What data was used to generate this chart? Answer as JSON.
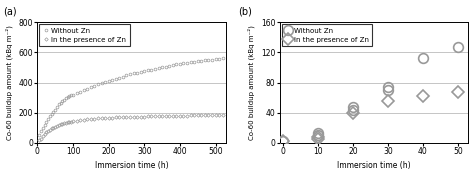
{
  "panel_a": {
    "title": "(a)",
    "xlabel": "Immersion time (h)",
    "ylabel": "Co-60 buildup amount (kBq m⁻²)",
    "xlim": [
      0,
      530
    ],
    "ylim": [
      0,
      800
    ],
    "yticks": [
      0,
      200,
      400,
      600,
      800
    ],
    "xticks": [
      0,
      100,
      200,
      300,
      400,
      500
    ],
    "series_without_zn": {
      "x": [
        5,
        10,
        15,
        20,
        25,
        30,
        35,
        40,
        45,
        50,
        55,
        60,
        65,
        70,
        75,
        80,
        85,
        90,
        95,
        100,
        110,
        120,
        130,
        140,
        150,
        160,
        170,
        180,
        190,
        200,
        210,
        220,
        230,
        240,
        250,
        260,
        270,
        280,
        290,
        300,
        310,
        320,
        330,
        340,
        350,
        360,
        370,
        380,
        390,
        400,
        410,
        420,
        430,
        440,
        450,
        460,
        470,
        480,
        490,
        500,
        510,
        520
      ],
      "y": [
        50,
        75,
        100,
        120,
        140,
        160,
        175,
        190,
        205,
        220,
        240,
        255,
        265,
        275,
        285,
        295,
        305,
        310,
        315,
        320,
        330,
        340,
        350,
        360,
        370,
        380,
        388,
        395,
        402,
        410,
        418,
        425,
        432,
        440,
        448,
        455,
        460,
        465,
        470,
        475,
        480,
        485,
        490,
        495,
        500,
        505,
        510,
        515,
        520,
        525,
        528,
        532,
        535,
        538,
        541,
        544,
        547,
        550,
        553,
        556,
        559,
        562
      ],
      "color": "#999999",
      "marker": "o",
      "markersize": 2.0
    },
    "series_with_zn": {
      "x": [
        5,
        10,
        15,
        20,
        25,
        30,
        35,
        40,
        45,
        50,
        55,
        60,
        65,
        70,
        75,
        80,
        85,
        90,
        95,
        100,
        110,
        120,
        130,
        140,
        150,
        160,
        170,
        180,
        190,
        200,
        210,
        220,
        230,
        240,
        250,
        260,
        270,
        280,
        290,
        300,
        310,
        320,
        330,
        340,
        350,
        360,
        370,
        380,
        390,
        400,
        410,
        420,
        430,
        440,
        450,
        460,
        470,
        480,
        490,
        500,
        510,
        520
      ],
      "y": [
        15,
        28,
        42,
        56,
        68,
        78,
        87,
        95,
        101,
        107,
        113,
        118,
        122,
        126,
        130,
        133,
        136,
        138,
        140,
        143,
        147,
        150,
        153,
        156,
        158,
        160,
        162,
        163,
        165,
        166,
        167,
        168,
        169,
        170,
        171,
        172,
        172,
        173,
        174,
        174,
        175,
        175,
        176,
        176,
        177,
        177,
        178,
        178,
        179,
        179,
        180,
        180,
        181,
        181,
        182,
        182,
        183,
        183,
        184,
        184,
        185,
        185
      ],
      "color": "#999999",
      "marker": "D",
      "markersize": 1.8
    },
    "legend": {
      "without_zn_label": "Without Zn",
      "with_zn_label": "In the presence of Zn"
    }
  },
  "panel_b": {
    "title": "(b)",
    "xlabel": "Immersion time (h)",
    "ylabel": "Co-60 buildup amount (kBq m⁻²)",
    "xlim": [
      -1,
      53
    ],
    "ylim": [
      0,
      160
    ],
    "yticks": [
      0,
      40,
      80,
      120,
      160
    ],
    "xticks": [
      0,
      10,
      20,
      30,
      40,
      50
    ],
    "series_without_zn": {
      "x": [
        0,
        10,
        10,
        20,
        20,
        30,
        30,
        40,
        50
      ],
      "y": [
        2,
        10,
        13,
        43,
        47,
        70,
        74,
        113,
        127
      ],
      "color": "#999999",
      "marker": "o",
      "markersize": 7
    },
    "series_with_zn": {
      "x": [
        0,
        10,
        10,
        20,
        30,
        40,
        50
      ],
      "y": [
        2,
        7,
        5,
        40,
        55,
        62,
        67
      ],
      "color": "#999999",
      "marker": "D",
      "markersize": 6
    },
    "legend": {
      "without_zn_label": "Without Zn",
      "with_zn_label": "In the presence of Zn"
    }
  },
  "grid_color": "#bbbbbb",
  "background_color": "#ffffff"
}
